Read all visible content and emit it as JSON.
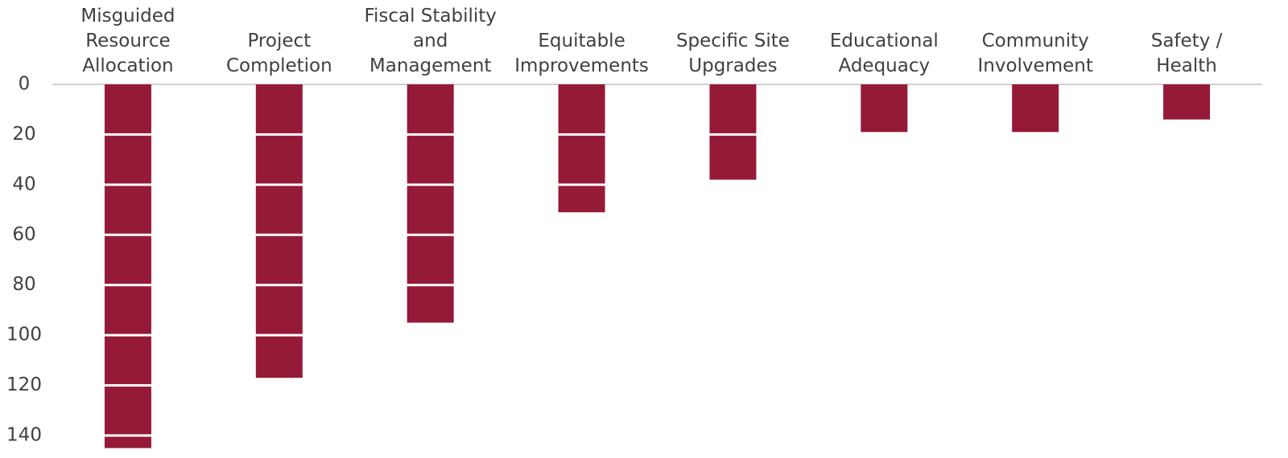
{
  "chart_data": {
    "type": "bar",
    "orientation": "inverted",
    "categories": [
      "Misguided\nResource\nAllocation",
      "Project\nCompletion",
      "Fiscal Stability\nand\nManagement",
      "Equitable\nImprovements",
      "Specific Site\nUpgrades",
      "Educational\nAdequacy",
      "Community\nInvolvement",
      "Safety /\nHealth"
    ],
    "values": [
      145,
      117,
      95,
      51,
      38,
      19,
      19,
      14
    ],
    "color": "#951a37",
    "ylim": [
      0,
      148
    ],
    "yticks": [
      0,
      20,
      40,
      60,
      80,
      100,
      120,
      140
    ],
    "grid": true,
    "grid_color": "#ffffff"
  }
}
